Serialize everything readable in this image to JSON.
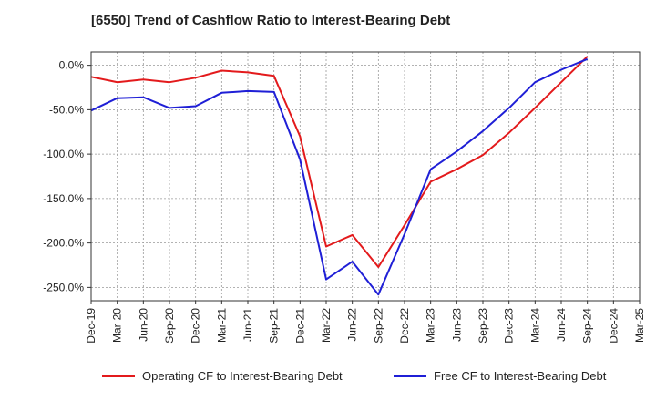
{
  "chart_data": {
    "type": "line",
    "title": "[6550]  Trend of Cashflow Ratio to Interest-Bearing Debt",
    "xlabel": "",
    "ylabel": "",
    "x": [
      "Dec-19",
      "Mar-20",
      "Jun-20",
      "Sep-20",
      "Dec-20",
      "Mar-21",
      "Jun-21",
      "Sep-21",
      "Dec-21",
      "Mar-22",
      "Jun-22",
      "Sep-22",
      "Dec-22",
      "Mar-23",
      "Jun-23",
      "Sep-23",
      "Dec-23",
      "Mar-24",
      "Jun-24",
      "Sep-24",
      "Dec-24",
      "Mar-25"
    ],
    "ylim": [
      -265,
      15
    ],
    "yticks": [
      0,
      -50,
      -100,
      -150,
      -200,
      -250
    ],
    "ytick_labels": [
      "0.0%",
      "-50.0%",
      "-100.0%",
      "-150.0%",
      "-200.0%",
      "-250.0%"
    ],
    "grid": true,
    "legend_position": "bottom",
    "series": [
      {
        "name": "Operating CF to Interest-Bearing Debt",
        "color": "#e31a1c",
        "values": [
          -13,
          -19,
          -16,
          -19,
          -14,
          -6,
          -8,
          -12,
          -80,
          -204,
          -191,
          -227,
          -180,
          -131,
          -117,
          -101,
          -76,
          -48,
          -19,
          10,
          null,
          null
        ]
      },
      {
        "name": "Free CF to Interest-Bearing Debt",
        "color": "#1f1fd6",
        "values": [
          -51,
          -37,
          -36,
          -48,
          -46,
          -31,
          -29,
          -30,
          -106,
          -241,
          -221,
          -258,
          -190,
          -117,
          -97,
          -74,
          -48,
          -19,
          -5,
          7,
          null,
          null
        ]
      }
    ]
  }
}
